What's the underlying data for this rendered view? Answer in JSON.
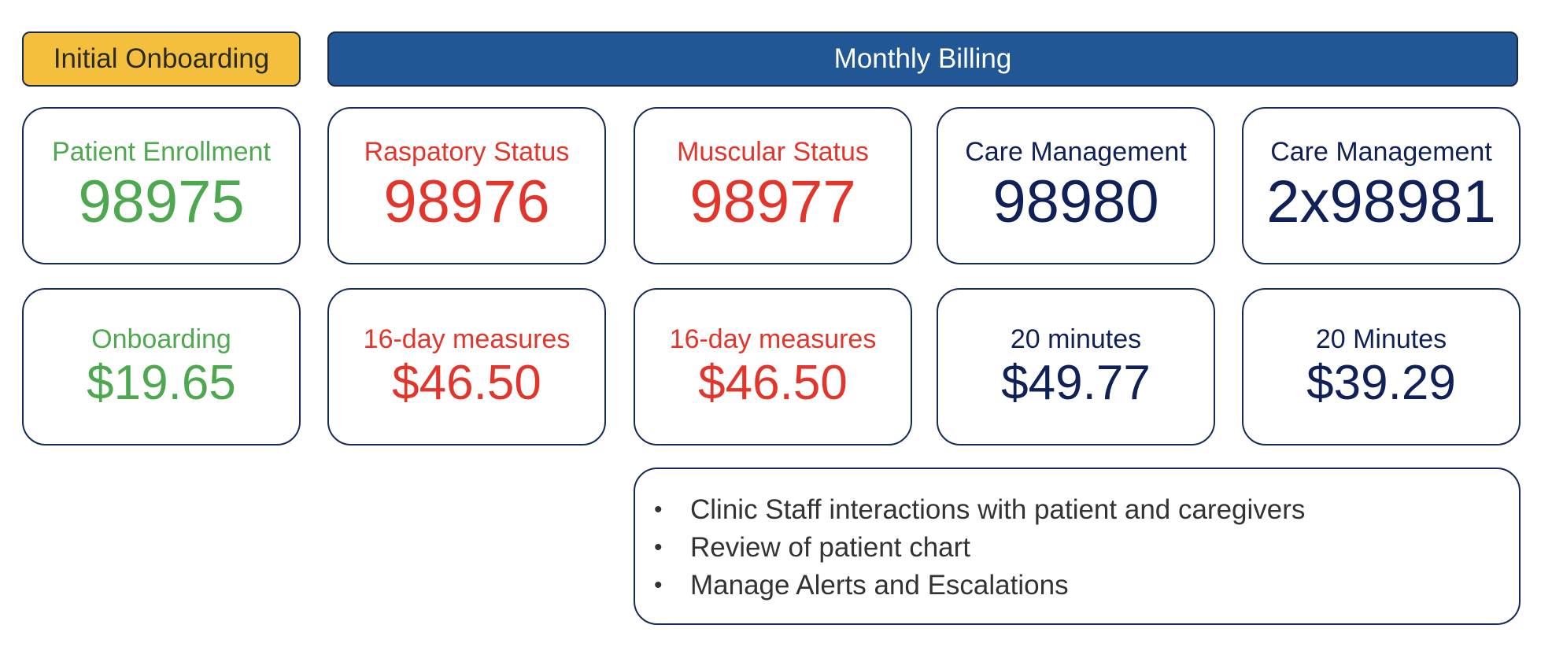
{
  "headers": {
    "initial_onboarding": "Initial Onboarding",
    "monthly_billing": "Monthly Billing"
  },
  "codes": [
    {
      "label": "Patient Enrollment",
      "code": "98975",
      "color": "#4ea84f"
    },
    {
      "label": "Raspatory Status",
      "code": "98976",
      "color": "#e2362c"
    },
    {
      "label": "Muscular Status",
      "code": "98977",
      "color": "#e2362c"
    },
    {
      "label": "Care Management",
      "code": "98980",
      "color": "#0f2157"
    },
    {
      "label": "Care Management",
      "code": "2x98981",
      "color": "#0f2157"
    }
  ],
  "rates": [
    {
      "label": "Onboarding",
      "price": "$19.65",
      "color": "#4ea84f"
    },
    {
      "label": "16-day measures",
      "price": "$46.50",
      "color": "#e2362c"
    },
    {
      "label": "16-day measures",
      "price": "$46.50",
      "color": "#e2362c"
    },
    {
      "label": "20 minutes",
      "price": "$49.77",
      "color": "#0f2157"
    },
    {
      "label": "20 Minutes",
      "price": "$39.29",
      "color": "#0f2157"
    }
  ],
  "notes": [
    "Clinic Staff interactions with patient and caregivers",
    "Review of patient chart",
    "Manage Alerts and Escalations"
  ],
  "colors": {
    "onboarding_header": "#f4bf3c",
    "billing_header": "#225795",
    "card_border": "#152a57"
  }
}
